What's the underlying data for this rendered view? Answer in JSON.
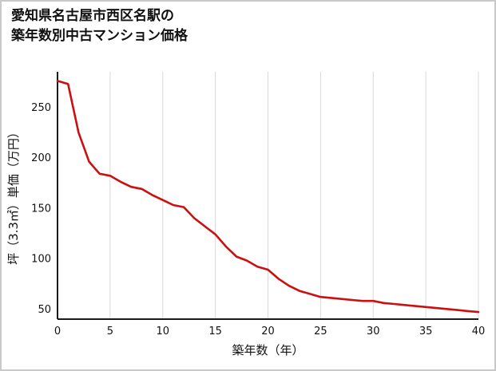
{
  "title": {
    "line1": "愛知県名古屋市西区名駅の",
    "line2": "築年数別中古マンション価格"
  },
  "chart_data": {
    "type": "line",
    "title": "愛知県名古屋市西区名駅の築年数別中古マンション価格",
    "xlabel": "築年数（年）",
    "ylabel": "坪（3.3㎡）単価（万円）",
    "x": [
      0,
      1,
      2,
      3,
      4,
      5,
      6,
      7,
      8,
      9,
      10,
      11,
      12,
      13,
      14,
      15,
      16,
      17,
      18,
      19,
      20,
      21,
      22,
      23,
      24,
      25,
      26,
      27,
      28,
      29,
      30,
      31,
      32,
      33,
      34,
      35,
      36,
      37,
      38,
      39,
      40
    ],
    "y": [
      276,
      273,
      225,
      196,
      184,
      182,
      176,
      171,
      169,
      163,
      158,
      153,
      151,
      140,
      132,
      124,
      112,
      102,
      98,
      92,
      89,
      80,
      73,
      68,
      65,
      62,
      61,
      60,
      59,
      58,
      58,
      56,
      55,
      54,
      53,
      52,
      51,
      50,
      49,
      48,
      47
    ],
    "xlim": [
      0,
      40
    ],
    "ylim": [
      40,
      285
    ],
    "xticks": [
      0,
      5,
      10,
      15,
      20,
      25,
      30,
      35,
      40
    ],
    "yticks": [
      50,
      100,
      150,
      200,
      250
    ],
    "line_color": "#cc0f0f",
    "axis_color": "#1a1a1a",
    "grid_color": "#d9d9d9",
    "grid": "vertical",
    "legend": "none"
  }
}
